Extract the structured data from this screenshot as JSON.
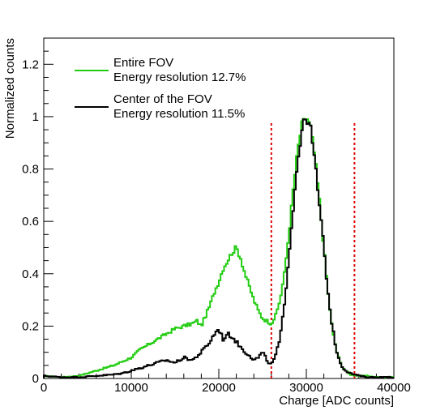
{
  "chart_data": {
    "type": "line",
    "xlabel": "Charge [ADC counts]",
    "ylabel": "Normalized counts",
    "xlim": [
      0,
      40000
    ],
    "ylim": [
      0,
      1.3
    ],
    "x_ticks": [
      0,
      10000,
      20000,
      30000,
      40000
    ],
    "y_ticks": [
      0,
      0.2,
      0.4,
      0.6,
      0.8,
      1,
      1.2
    ],
    "x_tick_labels": [
      "0",
      "10000",
      "20000",
      "30000",
      "40000"
    ],
    "y_tick_labels": [
      "0",
      "0.2",
      "0.4",
      "0.6",
      "0.8",
      "1",
      "1.2"
    ],
    "grid": false,
    "legend_position": "top-left",
    "cut_lines": [
      26000,
      35500
    ],
    "cut_line_height": 0.98,
    "series": [
      {
        "name": "Entire FOV",
        "subtitle": "Energy resolution 12.7%",
        "color": "#22cc11",
        "x": [
          0,
          2000,
          4000,
          6000,
          8000,
          10000,
          11000,
          12000,
          13000,
          14000,
          15000,
          16000,
          17000,
          17500,
          18000,
          18500,
          19000,
          19500,
          20000,
          20500,
          21000,
          21500,
          22000,
          22500,
          23000,
          23500,
          24000,
          24500,
          25000,
          25500,
          26000,
          26500,
          27000,
          27500,
          28000,
          28500,
          29000,
          29500,
          30000,
          30500,
          31000,
          31500,
          32000,
          32500,
          33000,
          33500,
          34000,
          34500,
          35000,
          36000,
          37000,
          38000,
          39000,
          40000
        ],
        "y": [
          0.01,
          0.005,
          0.01,
          0.03,
          0.05,
          0.08,
          0.11,
          0.13,
          0.15,
          0.17,
          0.19,
          0.2,
          0.21,
          0.22,
          0.2,
          0.24,
          0.28,
          0.33,
          0.37,
          0.42,
          0.45,
          0.48,
          0.5,
          0.46,
          0.4,
          0.35,
          0.3,
          0.26,
          0.23,
          0.22,
          0.21,
          0.24,
          0.3,
          0.4,
          0.55,
          0.72,
          0.87,
          0.97,
          1.0,
          0.96,
          0.84,
          0.68,
          0.5,
          0.32,
          0.18,
          0.1,
          0.05,
          0.03,
          0.015,
          0.01,
          0.01,
          0.005,
          0.005,
          0.005
        ]
      },
      {
        "name": "Center of the FOV",
        "subtitle": "Energy resolution 11.5%",
        "color": "#000000",
        "x": [
          0,
          2000,
          4000,
          6000,
          8000,
          9000,
          10000,
          11000,
          12000,
          13000,
          14000,
          15000,
          16000,
          17000,
          18000,
          18500,
          19000,
          19500,
          20000,
          20500,
          21000,
          21500,
          22000,
          22500,
          23000,
          23500,
          24000,
          24500,
          25000,
          25500,
          26000,
          26500,
          27000,
          27500,
          28000,
          28500,
          29000,
          29500,
          30000,
          30500,
          31000,
          31500,
          32000,
          32500,
          33000,
          33500,
          34000,
          34500,
          35000,
          36000,
          37000,
          38000,
          39000,
          40000
        ],
        "y": [
          0.01,
          0.005,
          0.005,
          0.01,
          0.015,
          0.02,
          0.03,
          0.04,
          0.05,
          0.06,
          0.07,
          0.06,
          0.08,
          0.07,
          0.1,
          0.12,
          0.14,
          0.17,
          0.19,
          0.15,
          0.17,
          0.16,
          0.14,
          0.12,
          0.1,
          0.09,
          0.07,
          0.08,
          0.1,
          0.07,
          0.05,
          0.09,
          0.15,
          0.28,
          0.47,
          0.65,
          0.83,
          0.95,
          1.0,
          0.95,
          0.82,
          0.66,
          0.5,
          0.32,
          0.19,
          0.1,
          0.05,
          0.03,
          0.02,
          0.01,
          0.005,
          0.005,
          0.005,
          0.005
        ]
      }
    ]
  }
}
